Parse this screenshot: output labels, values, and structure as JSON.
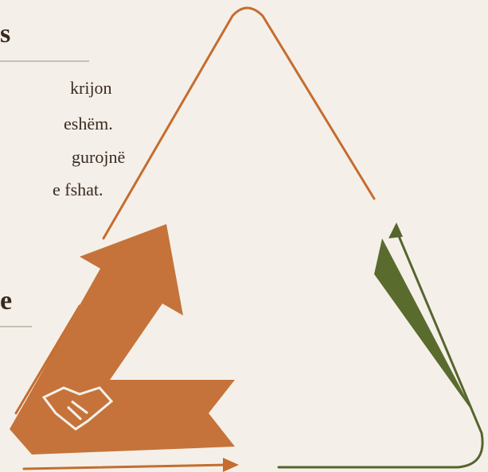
{
  "heading_1": "s",
  "paragraph_lines": [
    "krijon",
    "eshëm.",
    "gurojnë",
    "e fshat."
  ],
  "heading_2": "e"
}
